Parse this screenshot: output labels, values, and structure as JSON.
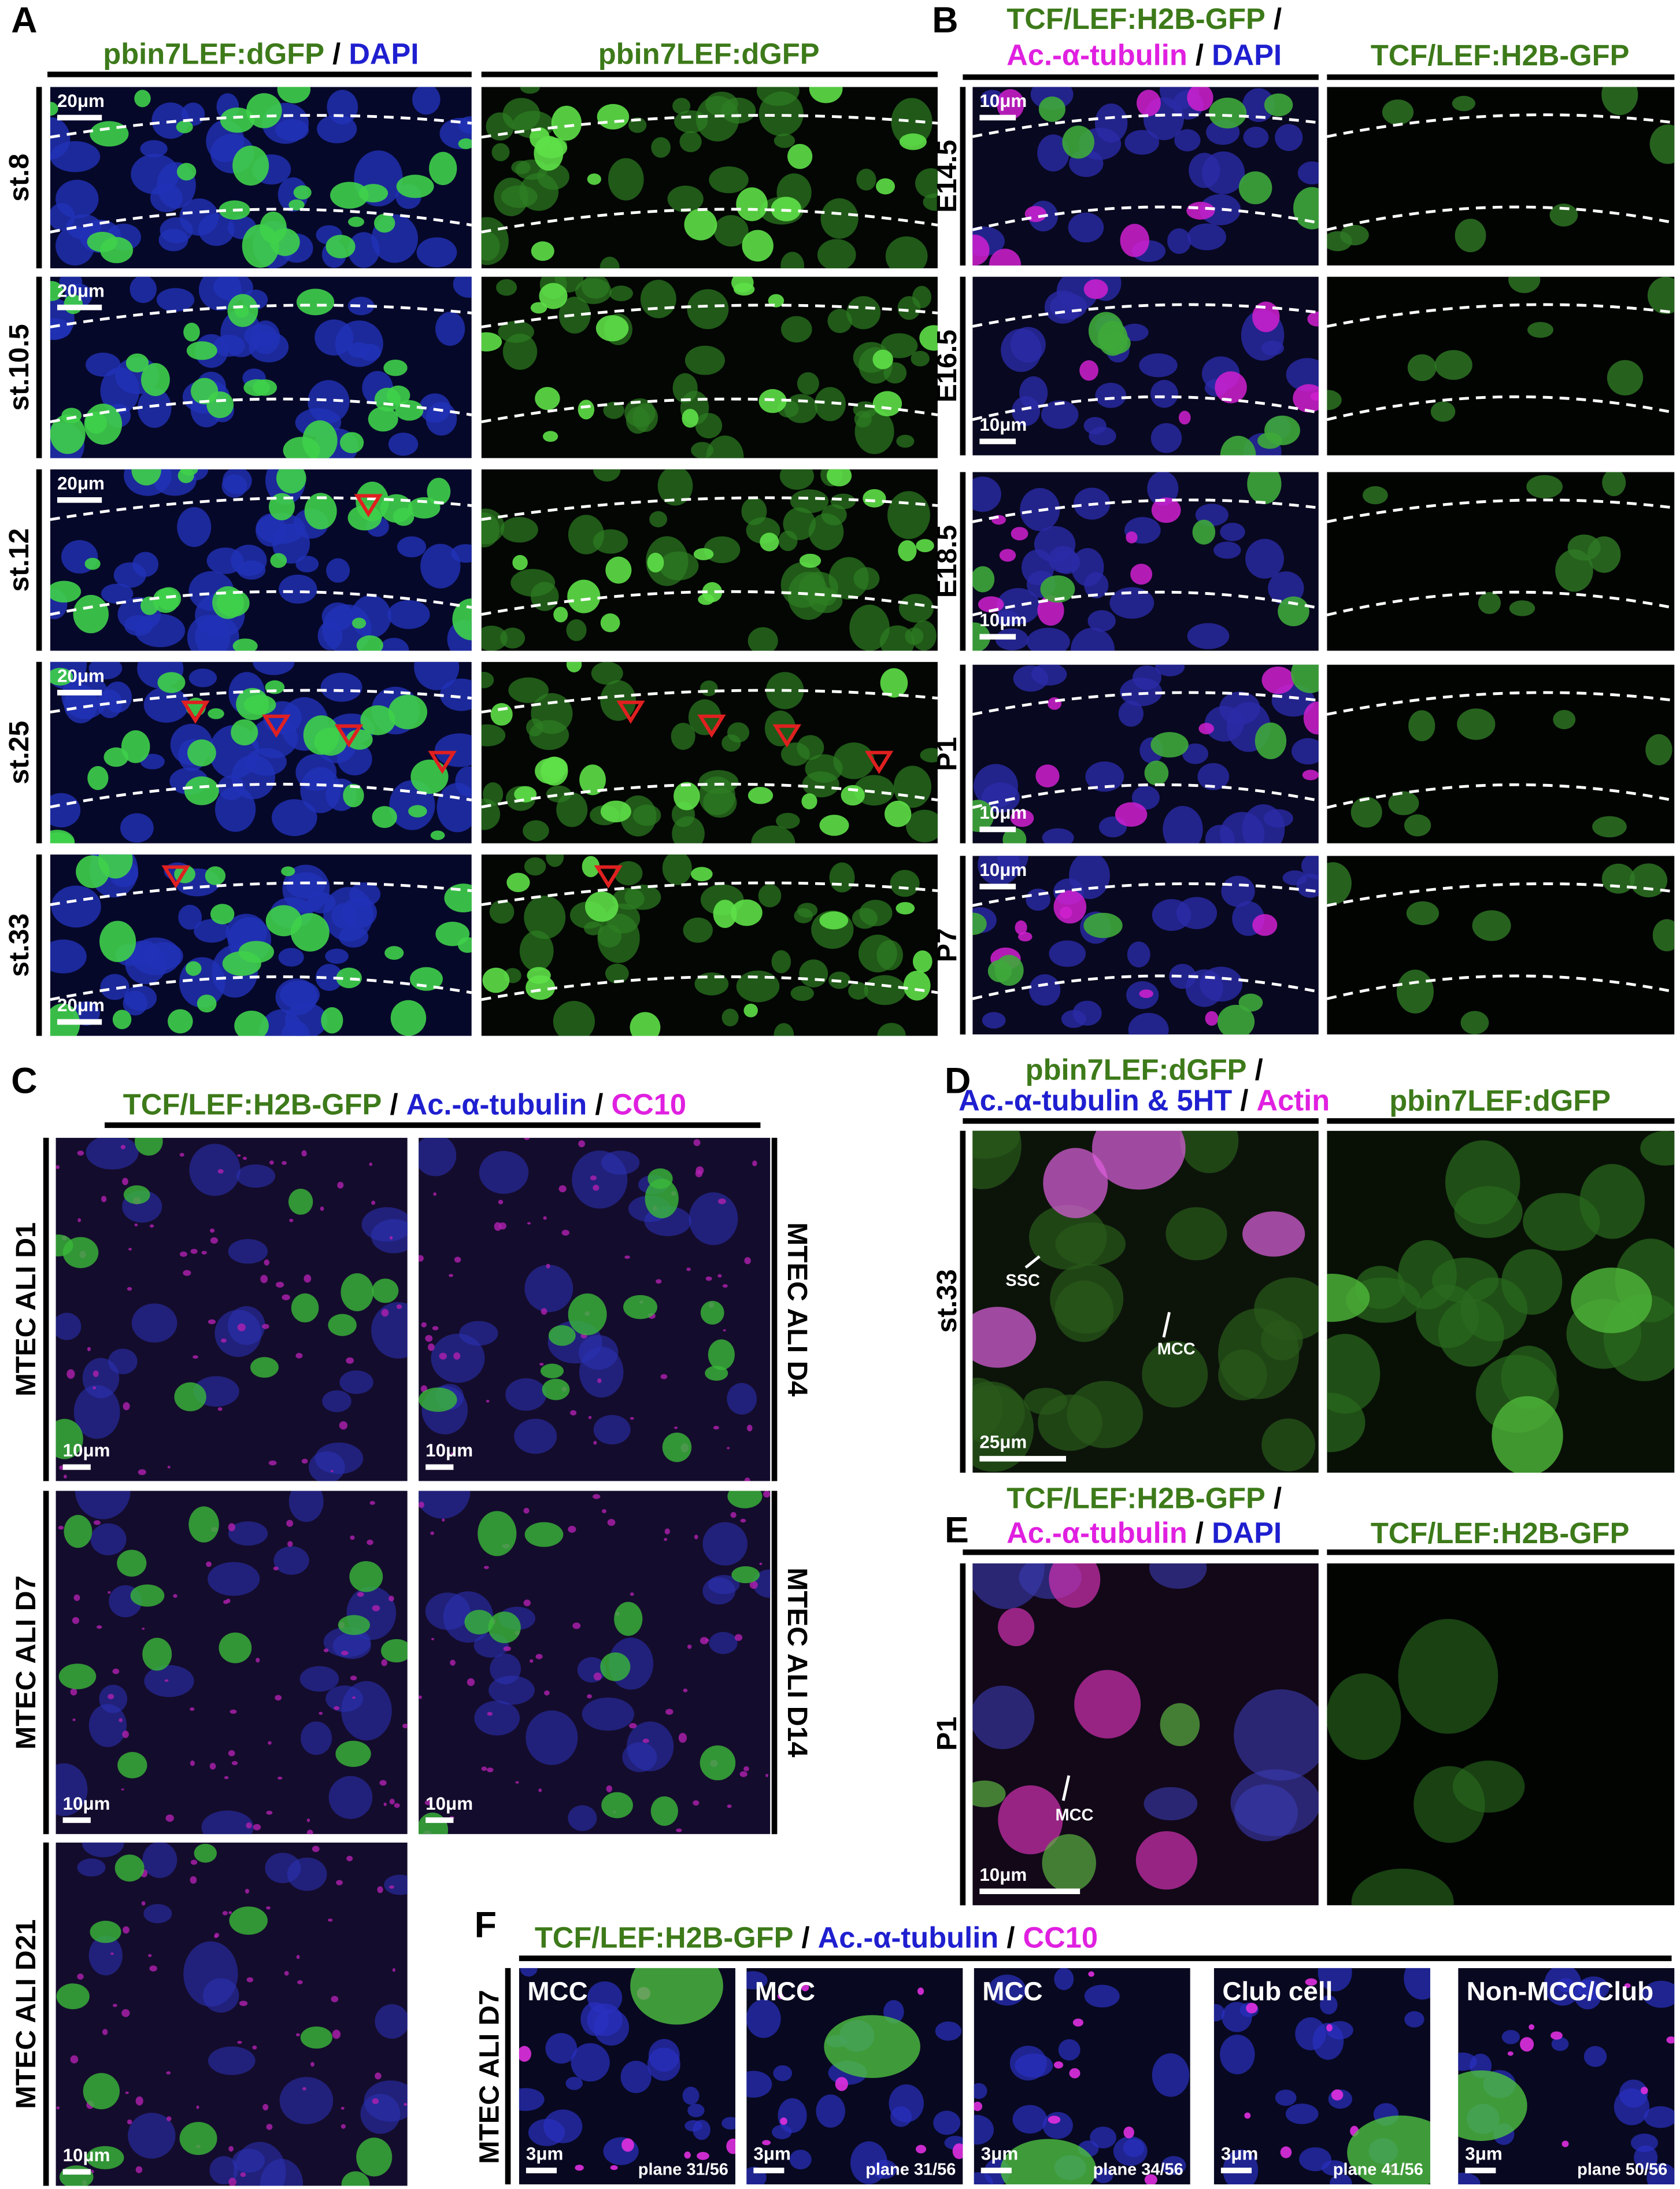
{
  "panel_a": {
    "letter": "A",
    "header_left": [
      "pbin7LEF:dGFP",
      "/",
      "DAPI"
    ],
    "header_right": "pbin7LEF:dGFP",
    "rows": [
      {
        "label": "st.8",
        "scale_bar": "20μm"
      },
      {
        "label": "st.10.5",
        "scale_bar": "20μm"
      },
      {
        "label": "st.12",
        "scale_bar": "20μm"
      },
      {
        "label": "st.25",
        "scale_bar": "20μm"
      },
      {
        "label": "st.33",
        "scale_bar": "20μm"
      }
    ]
  },
  "panel_b": {
    "letter": "B",
    "header_left": [
      [
        "TCF/LEF:H2B-GFP",
        "/"
      ],
      [
        "Ac.-α-tubulin",
        "/",
        "DAPI"
      ]
    ],
    "header_right": "TCF/LEF:H2B-GFP",
    "rows": [
      {
        "label": "E14.5",
        "scale_bar": "10μm"
      },
      {
        "label": "E16.5",
        "scale_bar": "10μm"
      },
      {
        "label": "E18.5",
        "scale_bar": "10μm"
      },
      {
        "label": "P1",
        "scale_bar": "10μm"
      },
      {
        "label": "P7",
        "scale_bar": "10μm"
      }
    ]
  },
  "panel_c": {
    "letter": "C",
    "header": [
      "TCF/LEF:H2B-GFP",
      "/",
      "Ac.-α-tubulin",
      "/",
      "CC10"
    ],
    "images": [
      {
        "label": "MTEC ALI D1",
        "scale_bar": "10μm"
      },
      {
        "label": "MTEC ALI D4",
        "scale_bar": "10μm"
      },
      {
        "label": "MTEC ALI D7",
        "scale_bar": "10μm"
      },
      {
        "label": "MTEC ALI D14",
        "scale_bar": "10μm"
      },
      {
        "label": "MTEC ALI D21",
        "scale_bar": "10μm"
      }
    ]
  },
  "panel_d": {
    "letter": "D",
    "header_left": [
      [
        "pbin7LEF:dGFP",
        "/"
      ],
      [
        "Ac.-α-tubulin & 5HT",
        "/",
        "Actin"
      ]
    ],
    "header_right": "pbin7LEF:dGFP",
    "row_label": "st.33",
    "annotations": [
      "SSC",
      "MCC"
    ],
    "scale_bar": "25μm"
  },
  "panel_e": {
    "letter": "E",
    "header_left": [
      [
        "TCF/LEF:H2B-GFP",
        "/"
      ],
      [
        "Ac.-α-tubulin",
        "/",
        "DAPI"
      ]
    ],
    "header_right": "TCF/LEF:H2B-GFP",
    "row_label": "P1",
    "annotation": "MCC",
    "scale_bar": "10μm"
  },
  "panel_f": {
    "letter": "F",
    "header": [
      "TCF/LEF:H2B-GFP",
      "/",
      "Ac.-α-tubulin",
      "/",
      "CC10"
    ],
    "row_label": "MTEC ALI D7",
    "images": [
      {
        "title": "MCC",
        "scale_bar": "3μm",
        "plane": "plane 31/56"
      },
      {
        "title": "MCC",
        "scale_bar": "3μm",
        "plane": "plane 31/56"
      },
      {
        "title": "MCC",
        "scale_bar": "3μm",
        "plane": "plane 34/56"
      },
      {
        "title": "Club cell",
        "scale_bar": "3μm",
        "plane": "plane 41/56"
      },
      {
        "title": "Non-MCC/Club",
        "scale_bar": "3μm",
        "plane": "plane 50/56"
      }
    ]
  }
}
